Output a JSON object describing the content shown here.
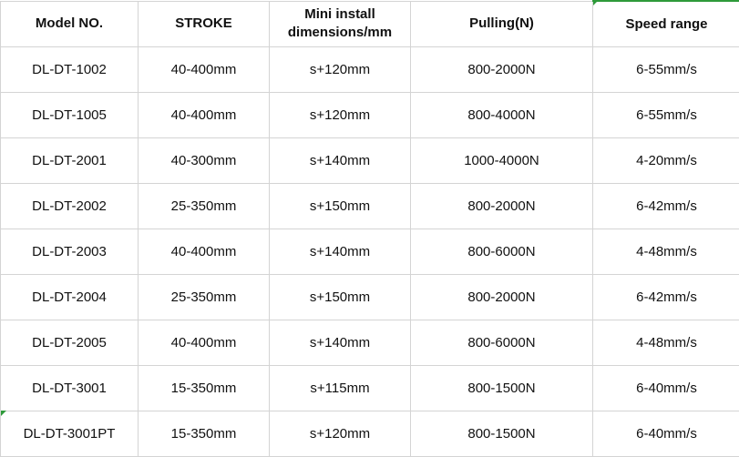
{
  "headers": [
    "Model NO.",
    "STROKE",
    "Mini install dimensions/mm",
    "Pulling(N)",
    "Speed range"
  ],
  "rows": [
    [
      "DL-DT-1002",
      "40-400mm",
      "s+120mm",
      "800-2000N",
      "6-55mm/s"
    ],
    [
      "DL-DT-1005",
      "40-400mm",
      "s+120mm",
      "800-4000N",
      "6-55mm/s"
    ],
    [
      "DL-DT-2001",
      "40-300mm",
      "s+140mm",
      "1000-4000N",
      "4-20mm/s"
    ],
    [
      "DL-DT-2002",
      "25-350mm",
      "s+150mm",
      "800-2000N",
      "6-42mm/s"
    ],
    [
      "DL-DT-2003",
      "40-400mm",
      "s+140mm",
      "800-6000N",
      "4-48mm/s"
    ],
    [
      "DL-DT-2004",
      "25-350mm",
      "s+150mm",
      "800-2000N",
      "6-42mm/s"
    ],
    [
      "DL-DT-2005",
      "40-400mm",
      "s+140mm",
      "800-6000N",
      "4-48mm/s"
    ],
    [
      "DL-DT-3001",
      "15-350mm",
      "s+115mm",
      "800-1500N",
      "6-40mm/s"
    ],
    [
      "DL-DT-3001PT",
      "15-350mm",
      "s+120mm",
      "800-1500N",
      "6-40mm/s"
    ]
  ],
  "colors": {
    "selection": "#2e9a3a",
    "grid": "#d4d4d4"
  }
}
